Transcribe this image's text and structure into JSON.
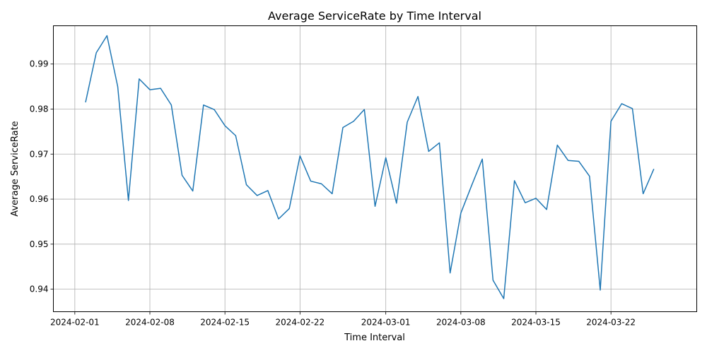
{
  "chart_data": {
    "type": "line",
    "title": "Average ServiceRate by Time Interval",
    "xlabel": "Time Interval",
    "ylabel": "Average ServiceRate",
    "xlim": [
      "2024-01-30",
      "2024-03-30"
    ],
    "ylim": [
      0.935,
      0.9985
    ],
    "x_ticks": [
      "2024-02-01",
      "2024-02-08",
      "2024-02-15",
      "2024-02-22",
      "2024-03-01",
      "2024-03-08",
      "2024-03-15",
      "2024-03-22"
    ],
    "y_ticks": [
      0.94,
      0.95,
      0.96,
      0.97,
      0.98,
      0.99
    ],
    "grid": true,
    "line_color": "#1f77b4",
    "series": [
      {
        "x": [
          "2024-02-02",
          "2024-02-03",
          "2024-02-04",
          "2024-02-05",
          "2024-02-06",
          "2024-02-07",
          "2024-02-08",
          "2024-02-09",
          "2024-02-10",
          "2024-02-11",
          "2024-02-12",
          "2024-02-13",
          "2024-02-14",
          "2024-02-15",
          "2024-02-16",
          "2024-02-17",
          "2024-02-18",
          "2024-02-19",
          "2024-02-20",
          "2024-02-21",
          "2024-02-22",
          "2024-02-23",
          "2024-02-24",
          "2024-02-25",
          "2024-02-26",
          "2024-02-27",
          "2024-02-28",
          "2024-02-29",
          "2024-03-01",
          "2024-03-02",
          "2024-03-03",
          "2024-03-04",
          "2024-03-05",
          "2024-03-06",
          "2024-03-07",
          "2024-03-08",
          "2024-03-09",
          "2024-03-10",
          "2024-03-11",
          "2024-03-12",
          "2024-03-13",
          "2024-03-14",
          "2024-03-15",
          "2024-03-16",
          "2024-03-17",
          "2024-03-18",
          "2024-03-19",
          "2024-03-20",
          "2024-03-21",
          "2024-03-22",
          "2024-03-23",
          "2024-03-24",
          "2024-03-25",
          "2024-03-26"
        ],
        "values": [
          0.9815,
          0.9925,
          0.9963,
          0.985,
          0.9597,
          0.9867,
          0.9843,
          0.9846,
          0.9809,
          0.9653,
          0.9618,
          0.9809,
          0.9799,
          0.9763,
          0.9741,
          0.9632,
          0.9608,
          0.9619,
          0.9556,
          0.9579,
          0.9696,
          0.964,
          0.9634,
          0.9612,
          0.9759,
          0.9773,
          0.9799,
          0.9584,
          0.9692,
          0.9591,
          0.9771,
          0.9828,
          0.9706,
          0.9725,
          0.9436,
          0.9569,
          0.963,
          0.9689,
          0.942,
          0.9379,
          0.9641,
          0.9592,
          0.9602,
          0.9577,
          0.972,
          0.9686,
          0.9684,
          0.9651,
          0.9398,
          0.9773,
          0.9812,
          0.9801,
          0.9612,
          0.9667
        ]
      }
    ]
  }
}
